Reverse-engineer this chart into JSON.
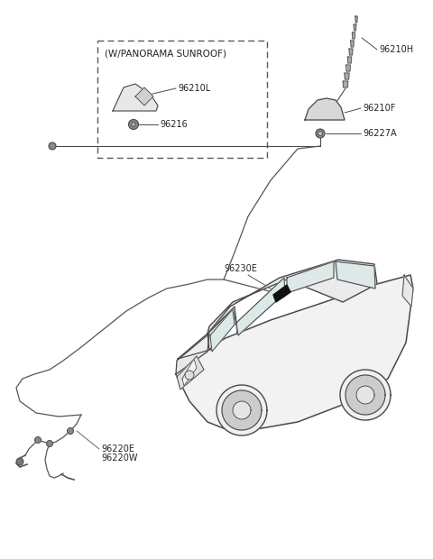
{
  "bg_color": "#ffffff",
  "parts": {
    "sunroof_box_label": "(W/PANORAMA SUNROOF)",
    "shark_fin_label": "96210L",
    "bolt1_label": "96216",
    "mast_label": "96210H",
    "base_label": "96210F",
    "bolt2_label": "96227A",
    "cable_label": "96230E",
    "wire1_label": "96220E",
    "wire2_label": "96220W"
  },
  "colors": {
    "line": "#4a4a4a",
    "dashed_box": "#5a5a5a",
    "fill_light": "#f0f0f0",
    "fill_mid": "#d8d8d8",
    "fill_dark": "#aaaaaa",
    "fill_black": "#111111",
    "text": "#222222"
  }
}
